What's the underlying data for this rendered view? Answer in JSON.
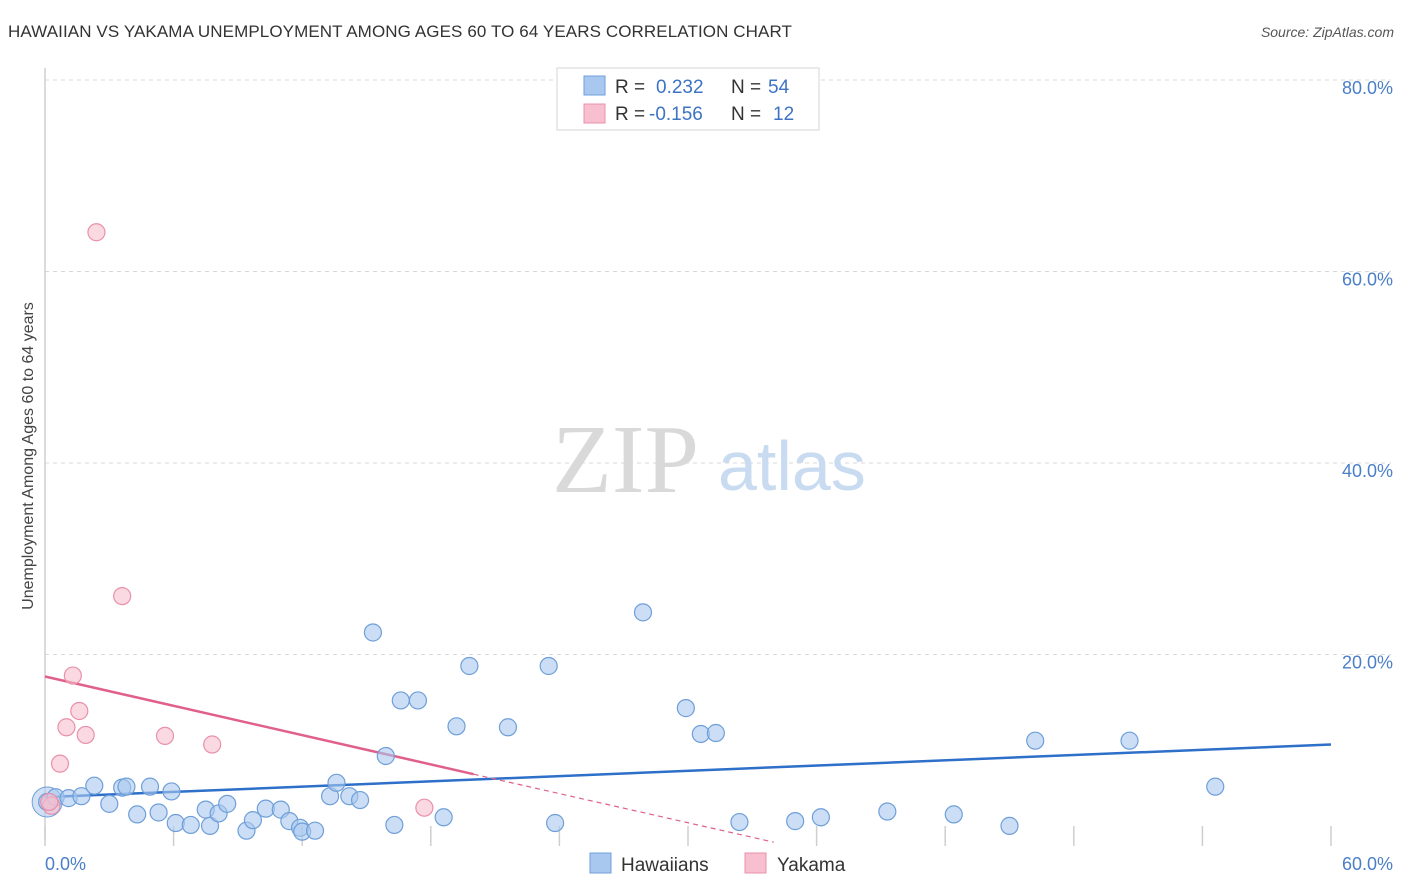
{
  "title": "HAWAIIAN VS YAKAMA UNEMPLOYMENT AMONG AGES 60 TO 64 YEARS CORRELATION CHART",
  "source": "Source: ZipAtlas.com",
  "watermark": {
    "zip": "ZIP",
    "atlas": "atlas"
  },
  "colors": {
    "blue_fill": "#a9c8ef",
    "blue_stroke": "#6f9fd8",
    "blue_line": "#2d6fc9",
    "pink_fill": "#f7bfcf",
    "pink_stroke": "#e891ab",
    "pink_line": "#e0608a",
    "tick_text": "#4a7fc8",
    "grid": "#d8d8d8"
  },
  "legend_top": {
    "rows": [
      {
        "r_label": "R =",
        "r_value": "0.232",
        "n_label": "N =",
        "n_value": "54"
      },
      {
        "r_label": "R =",
        "r_value": "-0.156",
        "n_label": "N =",
        "n_value": "12"
      }
    ]
  },
  "legend_bottom": [
    "Hawaiians",
    "Yakama"
  ],
  "chart_data": {
    "type": "scatter",
    "title": "HAWAIIAN VS YAKAMA UNEMPLOYMENT AMONG AGES 60 TO 64 YEARS CORRELATION CHART",
    "xlabel": "",
    "ylabel": "Unemployment Among Ages 60 to 64 years",
    "xlim": [
      0,
      60
    ],
    "ylim": [
      0,
      80
    ],
    "x_tick_labels": [
      "0.0%",
      "60.0%"
    ],
    "y_tick_labels": [
      "20.0%",
      "40.0%",
      "60.0%",
      "80.0%"
    ],
    "y_ticks": [
      20,
      40,
      60,
      80
    ],
    "series": [
      {
        "name": "Hawaiians",
        "r": 0.232,
        "n": 54,
        "trend": {
          "x": [
            0,
            60
          ],
          "y": [
            5.1,
            10.6
          ]
        },
        "points": [
          [
            0.1,
            4.6
          ],
          [
            0.5,
            5.1
          ],
          [
            1.1,
            5.0
          ],
          [
            1.7,
            5.2
          ],
          [
            2.3,
            6.3
          ],
          [
            3.0,
            4.4
          ],
          [
            3.6,
            6.1
          ],
          [
            3.8,
            6.2
          ],
          [
            4.3,
            3.3
          ],
          [
            4.9,
            6.2
          ],
          [
            5.3,
            3.5
          ],
          [
            5.9,
            5.7
          ],
          [
            6.1,
            2.4
          ],
          [
            6.8,
            2.2
          ],
          [
            7.5,
            3.8
          ],
          [
            7.7,
            2.1
          ],
          [
            8.1,
            3.4
          ],
          [
            8.5,
            4.4
          ],
          [
            9.4,
            1.6
          ],
          [
            9.7,
            2.7
          ],
          [
            10.3,
            3.9
          ],
          [
            11.0,
            3.8
          ],
          [
            11.4,
            2.6
          ],
          [
            11.9,
            1.9
          ],
          [
            12.0,
            1.5
          ],
          [
            12.6,
            1.6
          ],
          [
            13.3,
            5.2
          ],
          [
            13.6,
            6.6
          ],
          [
            14.2,
            5.2
          ],
          [
            14.7,
            4.8
          ],
          [
            15.3,
            22.3
          ],
          [
            15.9,
            9.4
          ],
          [
            16.3,
            2.2
          ],
          [
            16.6,
            15.2
          ],
          [
            17.4,
            15.2
          ],
          [
            18.6,
            3.0
          ],
          [
            19.2,
            12.5
          ],
          [
            19.8,
            18.8
          ],
          [
            21.6,
            12.4
          ],
          [
            23.5,
            18.8
          ],
          [
            23.8,
            2.4
          ],
          [
            27.9,
            24.4
          ],
          [
            29.9,
            14.4
          ],
          [
            30.6,
            11.7
          ],
          [
            31.3,
            11.8
          ],
          [
            32.4,
            2.5
          ],
          [
            35.0,
            2.6
          ],
          [
            36.2,
            3.0
          ],
          [
            39.3,
            3.6
          ],
          [
            42.4,
            3.3
          ],
          [
            45.0,
            2.1
          ],
          [
            46.2,
            11.0
          ],
          [
            50.6,
            11.0
          ],
          [
            54.6,
            6.2
          ]
        ]
      },
      {
        "name": "Yakama",
        "r": -0.156,
        "n": 12,
        "trend": {
          "x": [
            0,
            20
          ],
          "y": [
            17.7,
            7.5
          ]
        },
        "trend_dashed": {
          "x": [
            20,
            34
          ],
          "y": [
            7.5,
            0.4
          ]
        },
        "points": [
          [
            0.3,
            4.2
          ],
          [
            0.7,
            8.6
          ],
          [
            1.0,
            12.4
          ],
          [
            1.3,
            17.8
          ],
          [
            1.6,
            14.1
          ],
          [
            1.9,
            11.6
          ],
          [
            2.4,
            64.1
          ],
          [
            3.6,
            26.1
          ],
          [
            5.6,
            11.5
          ],
          [
            7.8,
            10.6
          ],
          [
            17.7,
            4.0
          ],
          [
            0.2,
            4.6
          ]
        ]
      }
    ]
  }
}
